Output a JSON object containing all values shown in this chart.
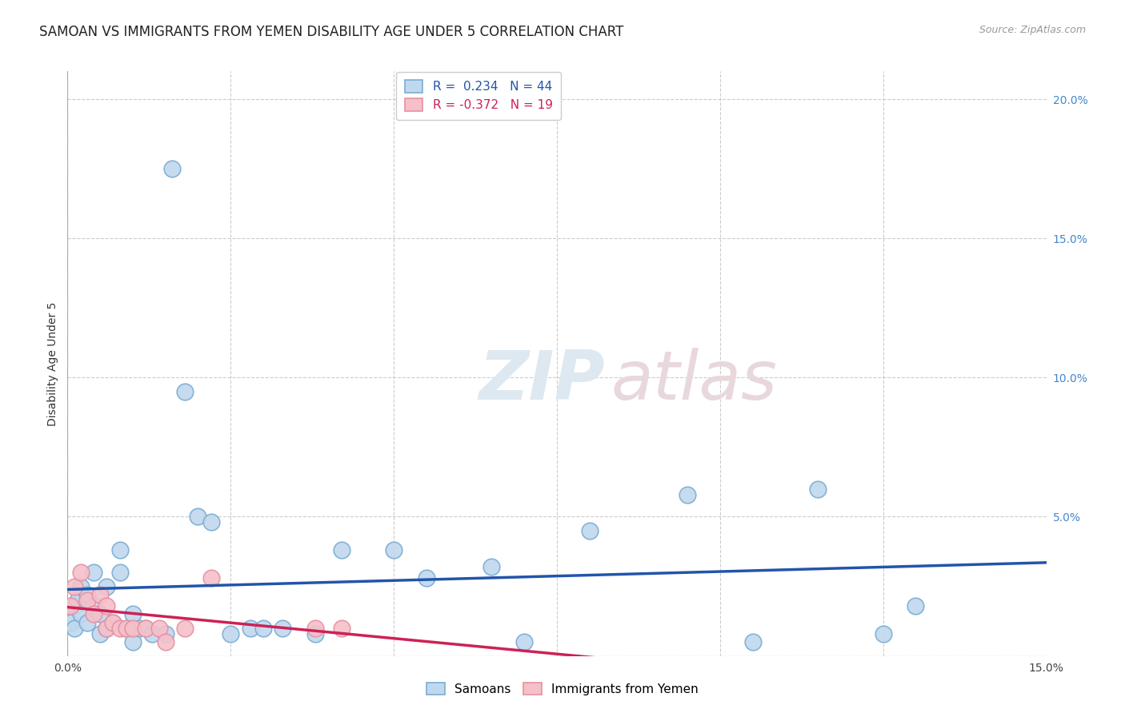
{
  "title": "SAMOAN VS IMMIGRANTS FROM YEMEN DISABILITY AGE UNDER 5 CORRELATION CHART",
  "source": "Source: ZipAtlas.com",
  "ylabel": "Disability Age Under 5",
  "xlim": [
    0.0,
    0.15
  ],
  "ylim": [
    0.0,
    0.21
  ],
  "xticks": [
    0.0,
    0.025,
    0.05,
    0.075,
    0.1,
    0.125,
    0.15
  ],
  "yticks_right": [
    0.0,
    0.05,
    0.1,
    0.15,
    0.2
  ],
  "ytick_labels_right": [
    "",
    "5.0%",
    "10.0%",
    "15.0%",
    "20.0%"
  ],
  "background_color": "#ffffff",
  "grid_color": "#cccccc",
  "watermark": "ZIPatlas",
  "samoans_x": [
    0.0005,
    0.001,
    0.001,
    0.0015,
    0.002,
    0.002,
    0.003,
    0.003,
    0.004,
    0.004,
    0.005,
    0.005,
    0.006,
    0.006,
    0.007,
    0.008,
    0.008,
    0.009,
    0.01,
    0.01,
    0.011,
    0.012,
    0.013,
    0.015,
    0.016,
    0.018,
    0.02,
    0.022,
    0.025,
    0.028,
    0.03,
    0.033,
    0.038,
    0.042,
    0.05,
    0.055,
    0.065,
    0.07,
    0.08,
    0.095,
    0.105,
    0.115,
    0.125,
    0.13
  ],
  "samoans_y": [
    0.012,
    0.018,
    0.01,
    0.02,
    0.025,
    0.015,
    0.022,
    0.012,
    0.03,
    0.018,
    0.015,
    0.008,
    0.025,
    0.01,
    0.012,
    0.038,
    0.03,
    0.01,
    0.015,
    0.005,
    0.01,
    0.01,
    0.008,
    0.008,
    0.175,
    0.095,
    0.05,
    0.048,
    0.008,
    0.01,
    0.01,
    0.01,
    0.008,
    0.038,
    0.038,
    0.028,
    0.032,
    0.005,
    0.045,
    0.058,
    0.005,
    0.06,
    0.008,
    0.018
  ],
  "yemen_x": [
    0.0005,
    0.001,
    0.002,
    0.003,
    0.004,
    0.005,
    0.006,
    0.006,
    0.007,
    0.008,
    0.009,
    0.01,
    0.012,
    0.014,
    0.015,
    0.018,
    0.022,
    0.038,
    0.042
  ],
  "yemen_y": [
    0.018,
    0.025,
    0.03,
    0.02,
    0.015,
    0.022,
    0.018,
    0.01,
    0.012,
    0.01,
    0.01,
    0.01,
    0.01,
    0.01,
    0.005,
    0.01,
    0.028,
    0.01,
    0.01
  ],
  "samoans_color": "#7aadd4",
  "samoans_color_fill": "#c0d8ee",
  "yemen_color": "#e890a0",
  "yemen_color_fill": "#f5c0ca",
  "trendline_samoan_color": "#2255aa",
  "trendline_yemen_color": "#cc2255",
  "legend_r_samoan": "R =  0.234",
  "legend_n_samoan": "N = 44",
  "legend_r_yemen": "R = -0.372",
  "legend_n_yemen": "N = 19",
  "title_fontsize": 12,
  "axis_label_fontsize": 10,
  "tick_fontsize": 10,
  "legend_fontsize": 11
}
